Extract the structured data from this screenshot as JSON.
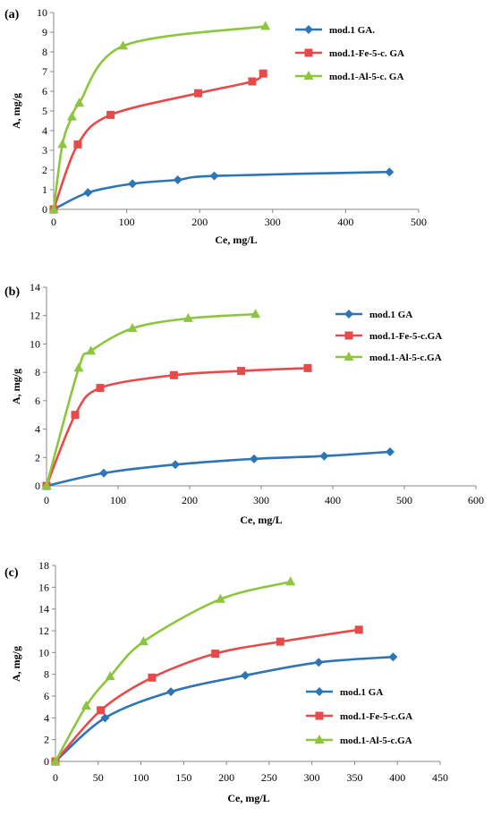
{
  "chart_data": [
    {
      "type": "line",
      "panel_label": "(a)",
      "xlabel": "Ce,  mg/L",
      "ylabel": "A,  mg/g",
      "xlim": [
        0,
        500
      ],
      "ylim": [
        0,
        10
      ],
      "xticks": [
        "0",
        "100",
        "200",
        "300",
        "400",
        "500"
      ],
      "yticks": [
        "0",
        "1",
        "2",
        "3",
        "4",
        "5",
        "6",
        "7",
        "8",
        "9",
        "10"
      ],
      "grid": false,
      "legend_position": "top-right",
      "series": [
        {
          "name": "mod.1 GA.",
          "color": "#2e75b6",
          "marker": "diamond",
          "x": [
            0,
            47,
            108,
            170,
            220,
            460
          ],
          "y": [
            0,
            0.85,
            1.3,
            1.5,
            1.7,
            1.9
          ]
        },
        {
          "name": "mod.1-Fe-5-c. GA",
          "color": "#e84a4a",
          "marker": "square",
          "x": [
            0,
            33,
            78,
            198,
            272,
            287
          ],
          "y": [
            0,
            3.3,
            4.8,
            5.9,
            6.5,
            6.9
          ]
        },
        {
          "name": "mod.1-Al-5-c. GA",
          "color": "#8cc63e",
          "marker": "triangle",
          "x": [
            0,
            12,
            25,
            35,
            95,
            290
          ],
          "y": [
            0,
            3.3,
            4.7,
            5.4,
            8.3,
            9.3
          ]
        }
      ]
    },
    {
      "type": "line",
      "panel_label": "(b)",
      "xlabel": "Ce,  mg/L",
      "ylabel": "A,  mg/g",
      "xlim": [
        0,
        600
      ],
      "ylim": [
        0,
        14
      ],
      "xticks": [
        "0",
        "100",
        "200",
        "300",
        "400",
        "500",
        "600"
      ],
      "yticks": [
        "0",
        "2",
        "4",
        "6",
        "8",
        "10",
        "12",
        "14"
      ],
      "grid": false,
      "legend_position": "right",
      "series": [
        {
          "name": "mod.1 GA",
          "color": "#2e75b6",
          "marker": "diamond",
          "x": [
            0,
            80,
            180,
            290,
            388,
            480
          ],
          "y": [
            0,
            0.9,
            1.5,
            1.9,
            2.1,
            2.4
          ]
        },
        {
          "name": "mod.1-Fe-5-c.GA",
          "color": "#e84a4a",
          "marker": "square",
          "x": [
            0,
            40,
            75,
            178,
            272,
            365
          ],
          "y": [
            0,
            5.0,
            6.9,
            7.8,
            8.1,
            8.3
          ]
        },
        {
          "name": "mod.1-Al-5-c.GA",
          "color": "#8cc63e",
          "marker": "triangle",
          "x": [
            0,
            45,
            62,
            120,
            198,
            292
          ],
          "y": [
            0,
            8.3,
            9.5,
            11.1,
            11.8,
            12.1
          ]
        }
      ]
    },
    {
      "type": "line",
      "panel_label": "(c)",
      "xlabel": "Ce,  mg/L",
      "ylabel": "A,  mg/g",
      "xlim": [
        0,
        450
      ],
      "ylim": [
        0,
        18
      ],
      "xticks": [
        "0",
        "50",
        "100",
        "150",
        "200",
        "250",
        "300",
        "350",
        "400",
        "450"
      ],
      "yticks": [
        "0",
        "2",
        "4",
        "6",
        "8",
        "10",
        "12",
        "14",
        "16",
        "18"
      ],
      "grid": false,
      "legend_position": "bottom-right",
      "series": [
        {
          "name": "mod.1 GA",
          "color": "#2e75b6",
          "marker": "diamond",
          "x": [
            0,
            58,
            135,
            222,
            308,
            395
          ],
          "y": [
            0,
            4.0,
            6.4,
            7.9,
            9.1,
            9.6
          ]
        },
        {
          "name": "mod.1-Fe-5-c.GA",
          "color": "#e84a4a",
          "marker": "square",
          "x": [
            0,
            53,
            113,
            187,
            263,
            355
          ],
          "y": [
            0,
            4.7,
            7.7,
            9.9,
            11.0,
            12.1
          ]
        },
        {
          "name": "mod.1-Al-5-c.GA",
          "color": "#8cc63e",
          "marker": "triangle",
          "x": [
            0,
            36,
            64,
            103,
            193,
            275
          ],
          "y": [
            0,
            5.1,
            7.8,
            11.0,
            14.9,
            16.5
          ]
        }
      ]
    }
  ]
}
